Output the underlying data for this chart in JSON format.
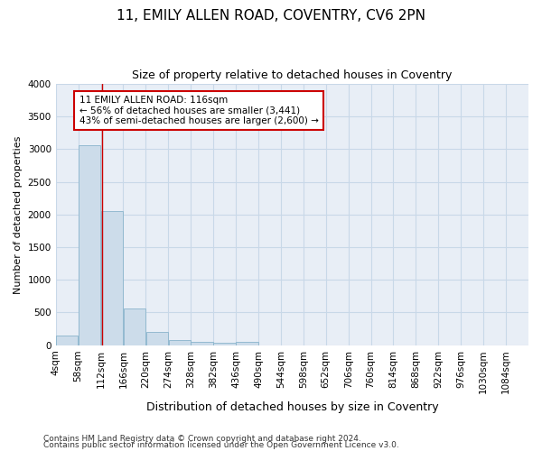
{
  "title": "11, EMILY ALLEN ROAD, COVENTRY, CV6 2PN",
  "subtitle": "Size of property relative to detached houses in Coventry",
  "xlabel": "Distribution of detached houses by size in Coventry",
  "ylabel": "Number of detached properties",
  "bin_labels": [
    "4sqm",
    "58sqm",
    "112sqm",
    "166sqm",
    "220sqm",
    "274sqm",
    "328sqm",
    "382sqm",
    "436sqm",
    "490sqm",
    "544sqm",
    "598sqm",
    "652sqm",
    "706sqm",
    "760sqm",
    "814sqm",
    "868sqm",
    "922sqm",
    "976sqm",
    "1030sqm",
    "1084sqm"
  ],
  "bar_values": [
    150,
    3060,
    2060,
    560,
    205,
    75,
    50,
    40,
    50,
    0,
    0,
    0,
    0,
    0,
    0,
    0,
    0,
    0,
    0,
    0,
    0
  ],
  "bar_color": "#ccdcea",
  "bar_edgecolor": "#89b4cc",
  "grid_color": "#c8d8e8",
  "background_color": "#e8eef6",
  "property_line_x": 116,
  "property_line_color": "#cc0000",
  "annotation_text": "11 EMILY ALLEN ROAD: 116sqm\n← 56% of detached houses are smaller (3,441)\n43% of semi-detached houses are larger (2,600) →",
  "annotation_box_facecolor": "#ffffff",
  "annotation_box_edgecolor": "#cc0000",
  "ylim": [
    0,
    4000
  ],
  "yticks": [
    0,
    500,
    1000,
    1500,
    2000,
    2500,
    3000,
    3500,
    4000
  ],
  "bin_edges": [
    4,
    58,
    112,
    166,
    220,
    274,
    328,
    382,
    436,
    490,
    544,
    598,
    652,
    706,
    760,
    814,
    868,
    922,
    976,
    1030,
    1084
  ],
  "bin_width": 54,
  "footer_line1": "Contains HM Land Registry data © Crown copyright and database right 2024.",
  "footer_line2": "Contains public sector information licensed under the Open Government Licence v3.0.",
  "title_fontsize": 11,
  "subtitle_fontsize": 9,
  "ylabel_fontsize": 8,
  "xlabel_fontsize": 9,
  "tick_fontsize": 7.5,
  "footer_fontsize": 6.5
}
